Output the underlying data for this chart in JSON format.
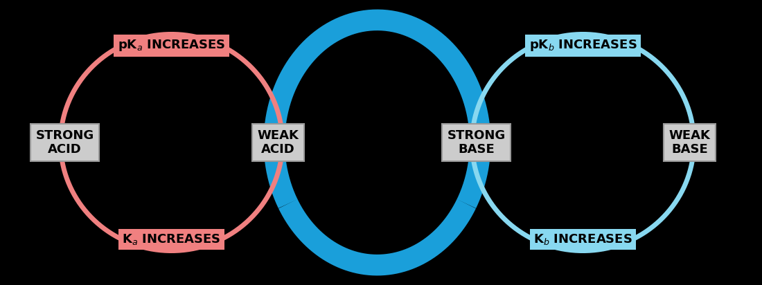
{
  "background_color": "#000000",
  "box_color": "#cccccc",
  "box_edge_color": "#999999",
  "pink_color": "#f08080",
  "bright_blue": "#1a9fda",
  "light_blue": "#88d8f0",
  "label_pink_bg": "#f08080",
  "label_blue_bg": "#88d8f0",
  "boxes": [
    {
      "label": "STRONG\nACID",
      "xf": 0.085,
      "yf": 0.5
    },
    {
      "label": "WEAK\nACID",
      "xf": 0.365,
      "yf": 0.5
    },
    {
      "label": "STRONG\nBASE",
      "xf": 0.625,
      "yf": 0.5
    },
    {
      "label": "WEAK\nBASE",
      "xf": 0.905,
      "yf": 0.5
    }
  ],
  "fig_w": 11.0,
  "fig_h": 4.12,
  "dpi": 100
}
